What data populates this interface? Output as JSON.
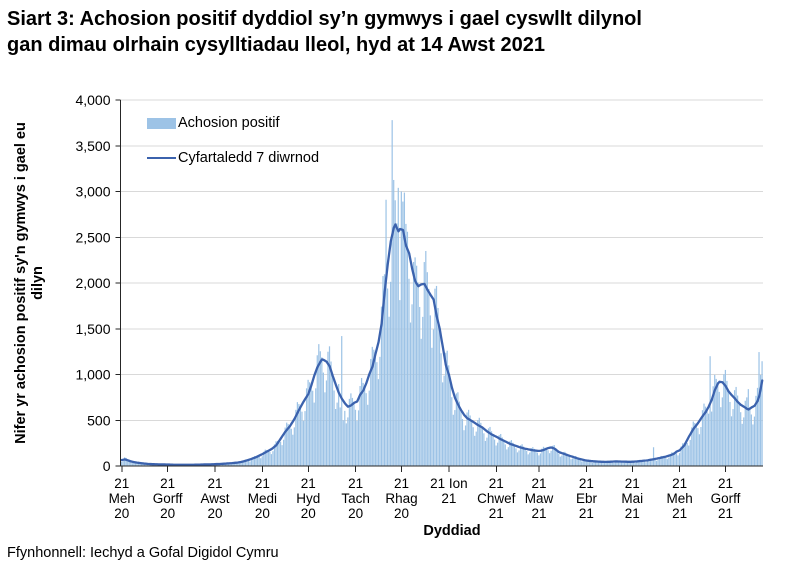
{
  "title": {
    "line1": "Siart 3: Achosion positif dyddiol sy’n gymwys i gael cyswllt dilynol",
    "line2": "gan dimau olrhain cysylltiadau lleol, hyd at 14 Awst 2021"
  },
  "y_axis": {
    "title_line1": "Nifer yr achosion positif sy'n gymwys i gael eu",
    "title_line2": "dilyn",
    "tick_labels": [
      "0",
      "500",
      "1,000",
      "1,500",
      "2,000",
      "2,500",
      "3,000",
      "3,500",
      "4,000"
    ],
    "tick_values": [
      0,
      500,
      1000,
      1500,
      2000,
      2500,
      3000,
      3500,
      4000
    ]
  },
  "x_axis": {
    "title": "Dyddiad",
    "ticks": [
      {
        "day": 0,
        "lines": [
          "21",
          "Meh",
          "20"
        ]
      },
      {
        "day": 30,
        "lines": [
          "21",
          "Gorff",
          "20"
        ]
      },
      {
        "day": 61,
        "lines": [
          "21",
          "Awst",
          "20"
        ]
      },
      {
        "day": 92,
        "lines": [
          "21",
          "Medi",
          "20"
        ]
      },
      {
        "day": 122,
        "lines": [
          "21",
          "Hyd",
          "20"
        ]
      },
      {
        "day": 153,
        "lines": [
          "21",
          "Tach",
          "20"
        ]
      },
      {
        "day": 183,
        "lines": [
          "21",
          "Rhag",
          "20"
        ]
      },
      {
        "day": 214,
        "lines": [
          "21 Ion",
          "21"
        ]
      },
      {
        "day": 245,
        "lines": [
          "21",
          "Chwef",
          "21"
        ]
      },
      {
        "day": 273,
        "lines": [
          "21",
          "Maw",
          "21"
        ]
      },
      {
        "day": 304,
        "lines": [
          "21",
          "Ebr",
          "21"
        ]
      },
      {
        "day": 334,
        "lines": [
          "21",
          "Mai",
          "21"
        ]
      },
      {
        "day": 365,
        "lines": [
          "21",
          "Meh",
          "21"
        ]
      },
      {
        "day": 395,
        "lines": [
          "21",
          "Gorff",
          "21"
        ]
      }
    ]
  },
  "legend": {
    "items": [
      {
        "label": "Achosion positif",
        "swatch": "bar"
      },
      {
        "label": "Cyfartaledd 7 diwrnod",
        "swatch": "line"
      }
    ]
  },
  "footer": "Ffynhonnell: Iechyd a Gofal Digidol Cymru",
  "colors": {
    "bar": "#9DC3E6",
    "line": "#3B62AD",
    "grid": "#D9D9D9",
    "axis": "#262626",
    "text": "#000000"
  },
  "chart_data": {
    "type": "bar",
    "title": "Achosion positif dyddiol, 21 Meh 2020 - 14 Awst 2021",
    "xlabel": "Dyddiad",
    "ylabel": "Nifer yr achosion positif sy'n gymwys i gael eu dilyn",
    "ylim": [
      0,
      4000
    ],
    "n_days": 420,
    "start_label": "21 Meh 20",
    "end_label": "14 Awst 21",
    "series": [
      {
        "name": "Achosion positif",
        "type": "bar",
        "values": [
          46,
          56,
          95,
          88,
          68,
          57,
          44,
          32,
          35,
          45,
          44,
          39,
          33,
          26,
          20,
          21,
          28,
          28,
          24,
          21,
          18,
          14,
          16,
          21,
          22,
          19,
          17,
          15,
          12,
          13,
          18,
          19,
          17,
          15,
          13,
          10,
          11,
          15,
          16,
          15,
          13,
          12,
          9,
          11,
          15,
          17,
          16,
          15,
          13,
          10,
          12,
          17,
          19,
          18,
          17,
          15,
          12,
          15,
          20,
          22,
          21,
          20,
          18,
          15,
          18,
          26,
          29,
          28,
          27,
          24,
          20,
          25,
          35,
          39,
          38,
          37,
          33,
          29,
          36,
          54,
          62,
          63,
          63,
          59,
          50,
          64,
          95,
          109,
          108,
          108,
          100,
          85,
          107,
          156,
          179,
          174,
          170,
          155,
          130,
          162,
          237,
          270,
          275,
          281,
          264,
          228,
          287,
          420,
          474,
          457,
          444,
          407,
          342,
          422,
          614,
          698,
          677,
          658,
          594,
          494,
          600,
          849,
          942,
          915,
          898,
          823,
          693,
          849,
          1210,
          1332,
          1254,
          1188,
          1021,
          805,
          935,
          1249,
          1308,
          1142,
          1005,
          825,
          623,
          693,
          896,
          640,
          1420,
          500,
          603,
          466,
          531,
          734,
          794,
          744,
          704,
          614,
          494,
          608,
          874,
          962,
          908,
          882,
          796,
          669,
          824,
          1170,
          1302,
          1271,
          1250,
          1135,
          949,
          1193,
          1742,
          2076,
          2096,
          2910,
          1940,
          1631,
          2013,
          3780,
          3126,
          2904,
          2652,
          3040,
          1813,
          3000,
          2890,
          2988,
          2646,
          2560,
          2046,
          1568,
          1767,
          2230,
          2280,
          2189,
          2004,
          1738,
          1390,
          1630,
          2229,
          2350,
          2118,
          1936,
          1646,
          1292,
          1492,
          1938,
          1968,
          1727,
          1530,
          1232,
          914,
          988,
          1238,
          1260,
          1100,
          947,
          752,
          560,
          611,
          793,
          806,
          704,
          622,
          514,
          391,
          443,
          585,
          614,
          552,
          502,
          424,
          330,
          376,
          502,
          527,
          472,
          428,
          357,
          274,
          310,
          411,
          427,
          380,
          344,
          289,
          224,
          255,
          337,
          350,
          312,
          282,
          236,
          181,
          206,
          271,
          283,
          254,
          230,
          193,
          149,
          170,
          226,
          238,
          212,
          193,
          164,
          127,
          147,
          196,
          206,
          187,
          171,
          146,
          116,
          137,
          190,
          210,
          200,
          194,
          172,
          140,
          166,
          221,
          229,
          196,
          168,
          134,
          102,
          115,
          151,
          155,
          135,
          119,
          98,
          74,
          83,
          106,
          108,
          92,
          81,
          66,
          50,
          55,
          71,
          72,
          64,
          57,
          48,
          37,
          42,
          56,
          59,
          53,
          48,
          40,
          32,
          37,
          51,
          55,
          51,
          48,
          42,
          34,
          41,
          56,
          59,
          54,
          49,
          42,
          33,
          38,
          52,
          55,
          51,
          48,
          41,
          34,
          41,
          58,
          64,
          61,
          58,
          52,
          42,
          51,
          73,
          82,
          78,
          205,
          68,
          57,
          69,
          99,
          110,
          105,
          101,
          91,
          76,
          93,
          132,
          150,
          145,
          147,
          139,
          116,
          141,
          213,
          248,
          248,
          262,
          253,
          224,
          285,
          422,
          486,
          470,
          457,
          414,
          347,
          426,
          610,
          682,
          649,
          632,
          572,
          1200,
          595,
          871,
          996,
          952,
          918,
          810,
          643,
          750,
          1002,
          1050,
          930,
          831,
          700,
          543,
          622,
          829,
          864,
          770,
          698,
          588,
          461,
          531,
          713,
          750,
          840,
          641,
          563,
          454,
          540,
          767,
          854,
          1245,
          995,
          1145
        ]
      },
      {
        "name": "Cyfartaledd 7 diwrnod",
        "type": "line",
        "values": [
          65,
          68,
          72,
          67,
          62,
          56,
          50,
          46,
          43,
          40,
          37,
          35,
          32,
          30,
          28,
          26,
          25,
          23,
          22,
          21,
          20,
          20,
          19,
          19,
          18,
          18,
          17,
          17,
          17,
          16,
          16,
          16,
          15,
          15,
          14,
          14,
          14,
          14,
          13,
          13,
          13,
          13,
          13,
          14,
          14,
          14,
          14,
          14,
          15,
          15,
          15,
          15,
          16,
          16,
          17,
          17,
          17,
          18,
          18,
          19,
          19,
          20,
          21,
          21,
          22,
          23,
          24,
          25,
          26,
          28,
          29,
          30,
          31,
          33,
          35,
          36,
          38,
          41,
          44,
          48,
          52,
          57,
          62,
          67,
          72,
          78,
          85,
          91,
          98,
          106,
          114,
          122,
          130,
          139,
          149,
          158,
          167,
          176,
          185,
          198,
          212,
          225,
          250,
          275,
          300,
          325,
          350,
          375,
          395,
          415,
          435,
          462,
          488,
          515,
          548,
          582,
          615,
          645,
          675,
          705,
          732,
          758,
          785,
          832,
          880,
          935,
          990,
          1035,
          1080,
          1110,
          1140,
          1165,
          1160,
          1150,
          1140,
          1115,
          1090,
          1038,
          985,
          938,
          890,
          845,
          800,
          768,
          735,
          710,
          685,
          666,
          648,
          655,
          662,
          676,
          690,
          698,
          705,
          742,
          780,
          802,
          825,
          865,
          905,
          955,
          1005,
          1045,
          1085,
          1155,
          1225,
          1290,
          1355,
          1455,
          1555,
          1730,
          1905,
          2055,
          2205,
          2330,
          2455,
          2530,
          2605,
          2640,
          2600,
          2565,
          2590,
          2585,
          2580,
          2490,
          2405,
          2365,
          2325,
          2240,
          2155,
          2085,
          2020,
          1990,
          1965,
          1975,
          1985,
          1988,
          1990,
          1958,
          1925,
          1898,
          1870,
          1845,
          1820,
          1730,
          1640,
          1570,
          1500,
          1400,
          1305,
          1205,
          1105,
          1050,
          1000,
          928,
          855,
          800,
          745,
          708,
          672,
          640,
          610,
          584,
          558,
          540,
          522,
          512,
          502,
          492,
          482,
          471,
          459,
          448,
          439,
          429,
          420,
          406,
          392,
          378,
          367,
          356,
          345,
          337,
          328,
          320,
          311,
          301,
          292,
          284,
          276,
          268,
          259,
          251,
          242,
          236,
          231,
          225,
          219,
          213,
          207,
          202,
          198,
          193,
          189,
          186,
          182,
          179,
          175,
          172,
          170,
          168,
          166,
          165,
          167,
          170,
          175,
          182,
          190,
          196,
          200,
          202,
          197,
          191,
          178,
          165,
          152,
          146,
          140,
          135,
          129,
          123,
          117,
          111,
          106,
          101,
          95,
          90,
          84,
          79,
          75,
          71,
          67,
          63,
          60,
          58,
          56,
          54,
          53,
          51,
          50,
          49,
          48,
          47,
          46,
          46,
          45,
          45,
          46,
          46,
          47,
          48,
          49,
          50,
          50,
          49,
          49,
          48,
          48,
          47,
          47,
          46,
          46,
          46,
          47,
          47,
          49,
          50,
          52,
          54,
          55,
          57,
          59,
          60,
          62,
          65,
          68,
          71,
          74,
          78,
          81,
          85,
          88,
          92,
          96,
          99,
          103,
          108,
          113,
          118,
          125,
          132,
          144,
          158,
          165,
          172,
          190,
          207,
          225,
          257,
          288,
          320,
          348,
          377,
          405,
          427,
          448,
          470,
          495,
          520,
          545,
          568,
          590,
          620,
          650,
          688,
          725,
          778,
          830,
          865,
          900,
          920,
          918,
          915,
          895,
          875,
          845,
          815,
          795,
          775,
          758,
          740,
          720,
          700,
          684,
          668,
          658,
          648,
          637,
          625,
          618,
          628,
          640,
          649,
          658,
          685,
          712,
          762,
          845,
          935
        ]
      }
    ],
    "x_tick_day_indices": [
      0,
      30,
      61,
      92,
      122,
      153,
      183,
      214,
      245,
      273,
      304,
      334,
      365,
      395
    ],
    "grid": true,
    "legend_position": "top-left-inside"
  }
}
